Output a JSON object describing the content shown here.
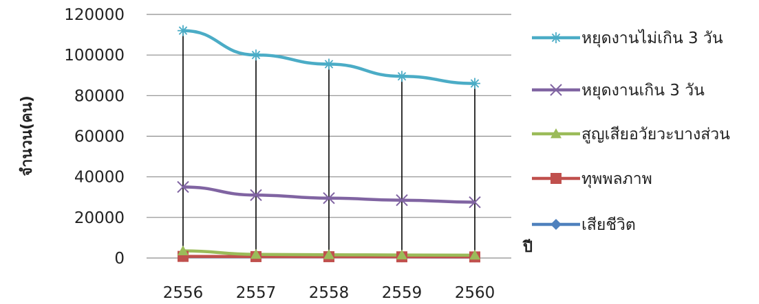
{
  "chart_data": {
    "type": "line",
    "title": "",
    "xlabel": "ปี",
    "ylabel": "จำนวน(คน)",
    "ylim": [
      0,
      120000
    ],
    "ytick_step": 20000,
    "grid": true,
    "legend_position": "right",
    "categories": [
      "2556",
      "2557",
      "2558",
      "2559",
      "2560"
    ],
    "y_ticks": [
      "0",
      "20000",
      "40000",
      "60000",
      "80000",
      "100000",
      "120000"
    ],
    "series": [
      {
        "name": "หยุดงานไม่เกิน 3 วัน",
        "color": "#4bacc6",
        "marker": "asterisk",
        "values": [
          112000,
          100000,
          95500,
          89500,
          86000
        ]
      },
      {
        "name": "หยุดงานเกิน 3 วัน",
        "color": "#8064a2",
        "marker": "x",
        "values": [
          35000,
          31000,
          29500,
          28500,
          27500
        ]
      },
      {
        "name": "สูญเสียอวัยวะบางส่วน",
        "color": "#9bbb59",
        "marker": "triangle",
        "values": [
          3500,
          1800,
          1600,
          1500,
          1400
        ]
      },
      {
        "name": "ทุพพลภาพ",
        "color": "#c0504d",
        "marker": "square",
        "values": [
          800,
          700,
          650,
          600,
          550
        ]
      },
      {
        "name": "เสียชีวิต",
        "color": "#4f81bd",
        "marker": "diamond",
        "values": [
          700,
          650,
          600,
          550,
          500
        ]
      }
    ]
  }
}
